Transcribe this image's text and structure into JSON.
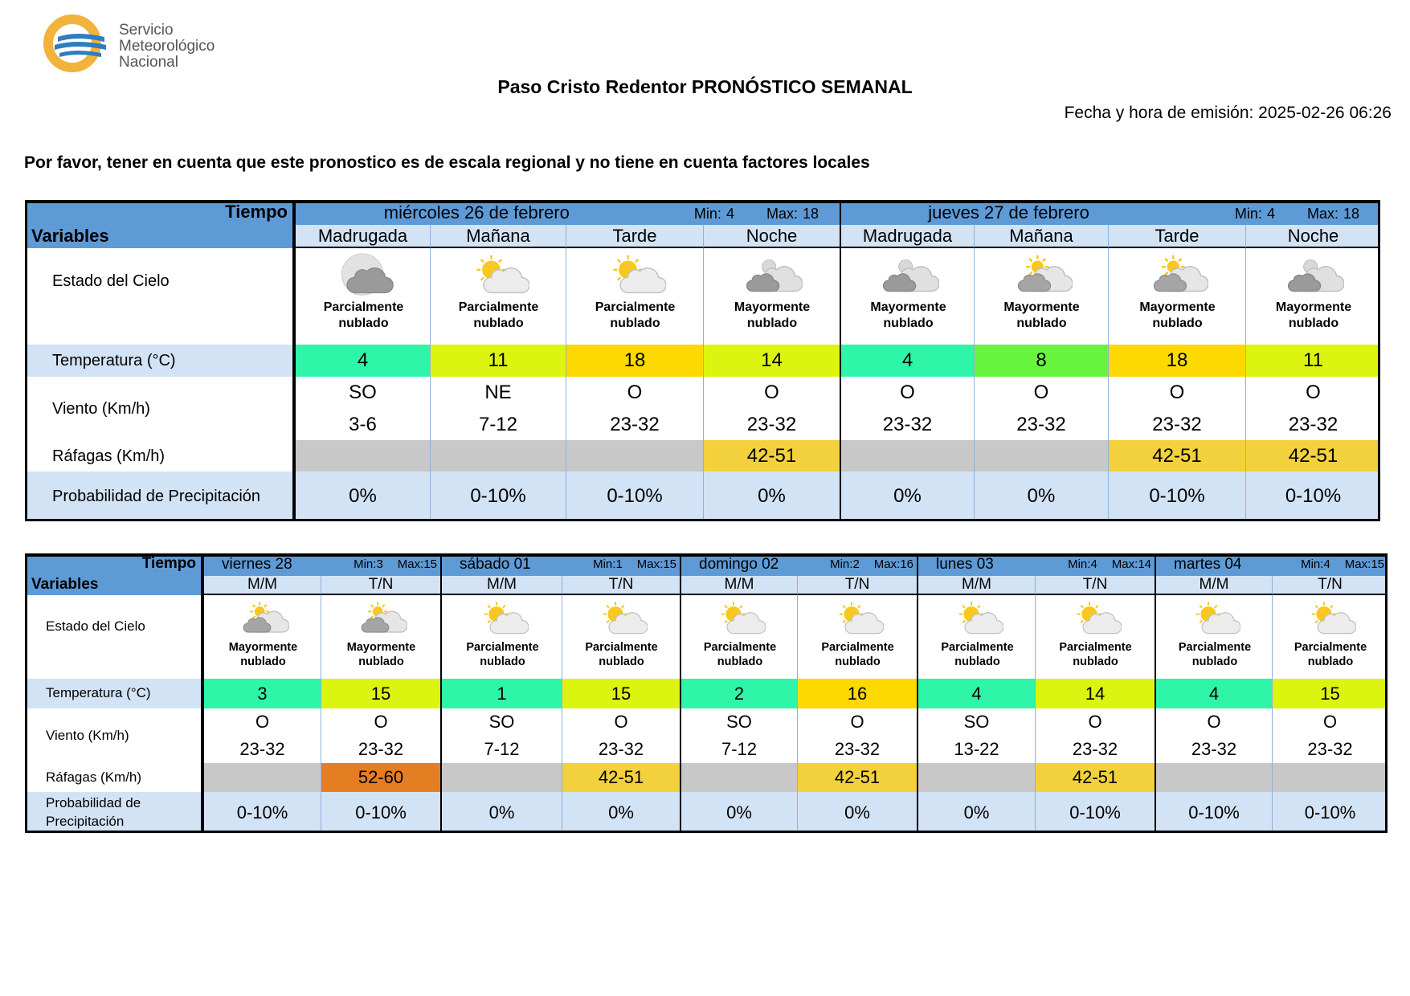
{
  "header": {
    "logo": [
      "Servicio",
      "Meteorológico",
      "Nacional"
    ],
    "title": "Paso Cristo Redentor PRONÓSTICO SEMANAL",
    "emission": "Fecha y hora de emisión: 2025-02-26 06:26",
    "note": "Por favor, tener en cuenta que este pronostico es de escala regional y no tiene en cuenta factores locales"
  },
  "tables": [
    {
      "tiempo": "Tiempo",
      "variables": "Variables",
      "row_labels": [
        "Estado del Cielo",
        "Temperatura (°C)",
        "Viento (Km/h)",
        "Ráfagas (Km/h)",
        "Probabilidad de Precipitación"
      ],
      "days": [
        {
          "name": "miércoles 26 de febrero",
          "min_label": "Min:",
          "min": 4,
          "max_label": "Max:",
          "max": 18,
          "periods": [
            {
              "name": "Madrugada",
              "icon": "moon-cloud",
              "sky": "Parcialmente nublado",
              "temp": 4,
              "temp_color": "#2ef5a8",
              "wind_dir": "SO",
              "wind_speed": "3-6",
              "gust": null,
              "gust_color": "#c8c8c8",
              "precip": "0%"
            },
            {
              "name": "Mañana",
              "icon": "sun-cloud",
              "sky": "Parcialmente nublado",
              "temp": 11,
              "temp_color": "#dcf510",
              "wind_dir": "NE",
              "wind_speed": "7-12",
              "gust": null,
              "gust_color": "#c8c8c8",
              "precip": "0-10%"
            },
            {
              "name": "Tarde",
              "icon": "sun-cloud",
              "sky": "Parcialmente nublado",
              "temp": 18,
              "temp_color": "#fcd900",
              "wind_dir": "O",
              "wind_speed": "23-32",
              "gust": null,
              "gust_color": "#c8c8c8",
              "precip": "0-10%"
            },
            {
              "name": "Noche",
              "icon": "night-cloud",
              "sky": "Mayormente nublado",
              "temp": 14,
              "temp_color": "#dcf510",
              "wind_dir": "O",
              "wind_speed": "23-32",
              "gust": "42-51",
              "gust_color": "#f3d03e",
              "precip": "0%"
            }
          ]
        },
        {
          "name": "jueves 27 de febrero",
          "min_label": "Min:",
          "min": 4,
          "max_label": "Max:",
          "max": 18,
          "periods": [
            {
              "name": "Madrugada",
              "icon": "night-cloud",
              "sky": "Mayormente nublado",
              "temp": 4,
              "temp_color": "#2ef5a8",
              "wind_dir": "O",
              "wind_speed": "23-32",
              "gust": null,
              "gust_color": "#c8c8c8",
              "precip": "0%"
            },
            {
              "name": "Mañana",
              "icon": "sun-cloud-dark",
              "sky": "Mayormente nublado",
              "temp": 8,
              "temp_color": "#66f53c",
              "wind_dir": "O",
              "wind_speed": "23-32",
              "gust": null,
              "gust_color": "#c8c8c8",
              "precip": "0%"
            },
            {
              "name": "Tarde",
              "icon": "sun-cloud-dark",
              "sky": "Mayormente nublado",
              "temp": 18,
              "temp_color": "#fcd900",
              "wind_dir": "O",
              "wind_speed": "23-32",
              "gust": "42-51",
              "gust_color": "#f3d03e",
              "precip": "0-10%"
            },
            {
              "name": "Noche",
              "icon": "night-cloud",
              "sky": "Mayormente nublado",
              "temp": 11,
              "temp_color": "#dcf510",
              "wind_dir": "O",
              "wind_speed": "23-32",
              "gust": "42-51",
              "gust_color": "#f3d03e",
              "precip": "0-10%"
            }
          ]
        }
      ]
    },
    {
      "tiempo": "Tiempo",
      "variables": "Variables",
      "row_labels": [
        "Estado del Cielo",
        "Temperatura (°C)",
        "Viento (Km/h)",
        "Ráfagas (Km/h)",
        "Probabilidad de Precipitación"
      ],
      "days": [
        {
          "name": "viernes 28",
          "min_label": "Min:",
          "min": 3,
          "max_label": "Max:",
          "max": 15,
          "periods": [
            {
              "name": "M/M",
              "icon": "sun-cloud-dark",
              "sky": "Mayormente nublado",
              "temp": 3,
              "temp_color": "#2ef5a8",
              "wind_dir": "O",
              "wind_speed": "23-32",
              "gust": null,
              "gust_color": "#c8c8c8",
              "precip": "0-10%"
            },
            {
              "name": "T/N",
              "icon": "sun-cloud-dark",
              "sky": "Mayormente nublado",
              "temp": 15,
              "temp_color": "#dcf510",
              "wind_dir": "O",
              "wind_speed": "23-32",
              "gust": "52-60",
              "gust_color": "#e57e22",
              "precip": "0-10%"
            }
          ]
        },
        {
          "name": "sábado 01",
          "min_label": "Min:",
          "min": 1,
          "max_label": "Max:",
          "max": 15,
          "periods": [
            {
              "name": "M/M",
              "icon": "sun-cloud",
              "sky": "Parcialmente nublado",
              "temp": 1,
              "temp_color": "#2ef5a8",
              "wind_dir": "SO",
              "wind_speed": "7-12",
              "gust": null,
              "gust_color": "#c8c8c8",
              "precip": "0%"
            },
            {
              "name": "T/N",
              "icon": "sun-cloud",
              "sky": "Parcialmente nublado",
              "temp": 15,
              "temp_color": "#dcf510",
              "wind_dir": "O",
              "wind_speed": "23-32",
              "gust": "42-51",
              "gust_color": "#f3d03e",
              "precip": "0%"
            }
          ]
        },
        {
          "name": "domingo 02",
          "min_label": "Min:",
          "min": 2,
          "max_label": "Max:",
          "max": 16,
          "periods": [
            {
              "name": "M/M",
              "icon": "sun-cloud",
              "sky": "Parcialmente nublado",
              "temp": 2,
              "temp_color": "#2ef5a8",
              "wind_dir": "SO",
              "wind_speed": "7-12",
              "gust": null,
              "gust_color": "#c8c8c8",
              "precip": "0%"
            },
            {
              "name": "T/N",
              "icon": "sun-cloud",
              "sky": "Parcialmente nublado",
              "temp": 16,
              "temp_color": "#fcd900",
              "wind_dir": "O",
              "wind_speed": "23-32",
              "gust": "42-51",
              "gust_color": "#f3d03e",
              "precip": "0%"
            }
          ]
        },
        {
          "name": "lunes 03",
          "min_label": "Min:",
          "min": 4,
          "max_label": "Max:",
          "max": 14,
          "periods": [
            {
              "name": "M/M",
              "icon": "sun-cloud",
              "sky": "Parcialmente nublado",
              "temp": 4,
              "temp_color": "#2ef5a8",
              "wind_dir": "SO",
              "wind_speed": "13-22",
              "gust": null,
              "gust_color": "#c8c8c8",
              "precip": "0%"
            },
            {
              "name": "T/N",
              "icon": "sun-cloud",
              "sky": "Parcialmente nublado",
              "temp": 14,
              "temp_color": "#dcf510",
              "wind_dir": "O",
              "wind_speed": "23-32",
              "gust": "42-51",
              "gust_color": "#f3d03e",
              "precip": "0-10%"
            }
          ]
        },
        {
          "name": "martes 04",
          "min_label": "Min:",
          "min": 4,
          "max_label": "Max:",
          "max": 15,
          "periods": [
            {
              "name": "M/M",
              "icon": "sun-cloud",
              "sky": "Parcialmente nublado",
              "temp": 4,
              "temp_color": "#2ef5a8",
              "wind_dir": "O",
              "wind_speed": "23-32",
              "gust": null,
              "gust_color": "#c8c8c8",
              "precip": "0-10%"
            },
            {
              "name": "T/N",
              "icon": "sun-cloud",
              "sky": "Parcialmente nublado",
              "temp": 15,
              "temp_color": "#dcf510",
              "wind_dir": "O",
              "wind_speed": "23-32",
              "gust": null,
              "gust_color": "#c8c8c8",
              "precip": "0-10%"
            }
          ]
        }
      ]
    }
  ]
}
